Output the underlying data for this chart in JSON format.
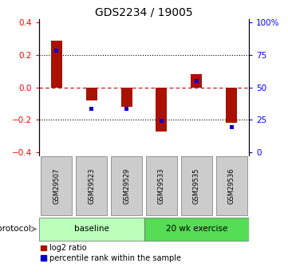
{
  "title": "GDS2234 / 19005",
  "samples": [
    "GSM29507",
    "GSM29523",
    "GSM29529",
    "GSM29533",
    "GSM29535",
    "GSM29536"
  ],
  "log2_ratio": [
    0.29,
    -0.08,
    -0.12,
    -0.27,
    0.08,
    -0.22
  ],
  "percentile_rank_mapped": [
    0.225,
    -0.13,
    -0.13,
    -0.205,
    0.04,
    -0.245
  ],
  "groups": [
    {
      "label": "baseline",
      "start": 0,
      "end": 2,
      "color": "#bbffbb"
    },
    {
      "label": "20 wk exercise",
      "start": 3,
      "end": 5,
      "color": "#55dd55"
    }
  ],
  "ylim": [
    -0.42,
    0.42
  ],
  "yticks_left": [
    -0.4,
    -0.2,
    0.0,
    0.2,
    0.4
  ],
  "right_tick_positions": [
    -0.4,
    -0.2,
    0.0,
    0.2,
    0.4
  ],
  "right_tick_labels": [
    "0",
    "25",
    "50",
    "75",
    "100%"
  ],
  "bar_color_red": "#aa1100",
  "bar_color_blue": "#0000cc",
  "bar_width": 0.32,
  "blue_bar_width": 0.12,
  "blue_bar_height": 0.025,
  "background_color": "#ffffff",
  "zero_line_color": "#cc0000",
  "dotted_line_color": "#000000",
  "label_log2": "log2 ratio",
  "label_percentile": "percentile rank within the sample",
  "protocol_label": "protocol",
  "sample_box_color": "#cccccc"
}
